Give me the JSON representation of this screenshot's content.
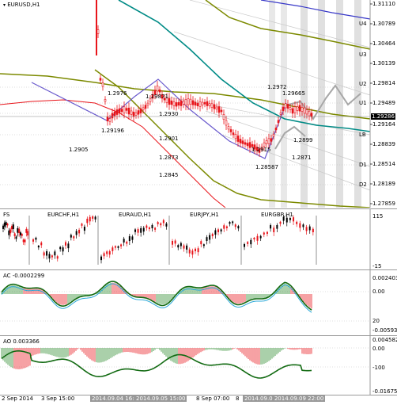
{
  "main": {
    "title": "EURUSD,H1",
    "bid": "1.29286",
    "axis_prices": [
      "1.31110",
      "1.30789",
      "1.30464",
      "1.30139",
      "1.29814",
      "1.29489",
      "1.29164",
      "1.28839",
      "1.28514",
      "1.28189",
      "1.27859"
    ],
    "levels": [
      "U4",
      "U3",
      "U2",
      "U1",
      "LB",
      "D1",
      "D2"
    ],
    "annotations": [
      "1.29871",
      "1.2976",
      "1.2930",
      "1.29196",
      "1.2905",
      "1.2901",
      "1.2873",
      "1.2845",
      "1.2972",
      "1.29665",
      "1.2915",
      "1.2899",
      "1.2871",
      "1.28587"
    ],
    "colors": {
      "red": "#e8151b",
      "teal": "#008b86",
      "olive": "#7c8a00",
      "purple": "#6a5acd",
      "blue": "#3838c8",
      "gray": "#a7a7a7"
    }
  },
  "mini": {
    "title": "FS",
    "pairs": [
      "EURCHF,H1",
      "EURAUD,H1",
      "EURJPY,H1",
      "EURGBP,H1"
    ],
    "axis": [
      "115",
      "-15"
    ]
  },
  "ac": {
    "title": "AC -0.0002299",
    "axis": [
      "0.002403",
      "0.00",
      "20",
      "-0.005931"
    ]
  },
  "ao": {
    "title": "AO 0.003366",
    "axis": [
      "0.004582",
      "0.00",
      "-100",
      "-0.01675"
    ]
  },
  "time_axis": [
    "2 Sep 2014",
    "3 Sep 15:00",
    "2014.09.04 16:00",
    "2014.09.05 15:00",
    "8 Sep 07:00",
    "8",
    "2014.09.0 2014.09.09 22:00"
  ]
}
